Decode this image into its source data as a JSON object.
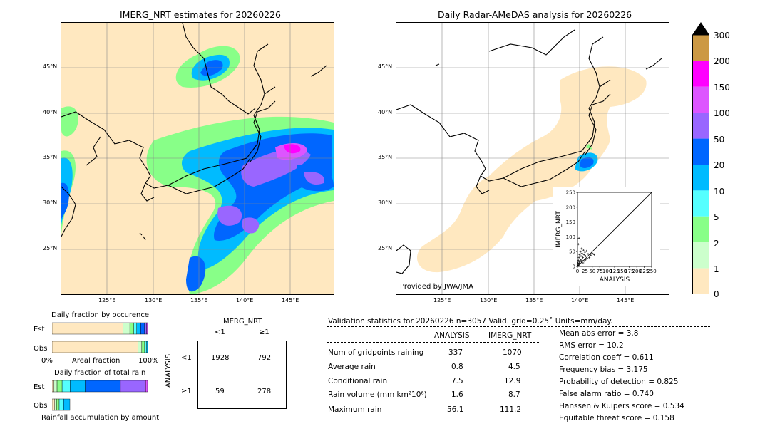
{
  "left_panel": {
    "title": "IMERG_NRT estimates for 20260226",
    "lat_ticks": [
      "45°N",
      "40°N",
      "35°N",
      "30°N",
      "25°N"
    ],
    "lon_ticks": [
      "125°E",
      "130°E",
      "135°E",
      "140°E",
      "145°E"
    ]
  },
  "right_panel": {
    "title": "Daily Radar-AMeDAS analysis for 20260226",
    "credit": "Provided by JWA/JMA",
    "lat_ticks": [
      "45°N",
      "40°N",
      "35°N",
      "30°N",
      "25°N"
    ],
    "lon_ticks": [
      "125°E",
      "130°E",
      "135°E",
      "140°E",
      "145°E"
    ]
  },
  "colorbar": {
    "labels": [
      "300",
      "200",
      "150",
      "100",
      "50",
      "20",
      "10",
      "5",
      "2",
      "1",
      "0"
    ],
    "colors": [
      "#cc9944",
      "#ff00ff",
      "#dd55ff",
      "#9966ff",
      "#0066ff",
      "#00bbff",
      "#55ffff",
      "#88ff88",
      "#ccffcc",
      "#ffe8c0"
    ],
    "top_color": "#000000"
  },
  "occurrence": {
    "title": "Daily fraction by occurence",
    "est_label": "Est",
    "obs_label": "Obs",
    "xaxis_left": "0%",
    "xaxis_mid": "Areal fraction",
    "xaxis_right": "100%",
    "est_segments": [
      0.72,
      0.07,
      0.04,
      0.03,
      0.04,
      0.04,
      0.02,
      0.01
    ],
    "obs_segments": [
      0.89,
      0.04,
      0.03,
      0.02,
      0.01
    ]
  },
  "total_rain": {
    "title": "Daily fraction of total rain",
    "est_label": "Est",
    "obs_label": "Obs",
    "footer": "Rainfall accumulation by amount",
    "est_segments": [
      0.02,
      0.03,
      0.05,
      0.08,
      0.15,
      0.35,
      0.25,
      0.02
    ],
    "obs_segments": [
      0.03,
      0.02,
      0.03,
      0.05,
      0.07
    ]
  },
  "contingency": {
    "title": "IMERG_NRT",
    "col_lt1": "<1",
    "col_ge1": "≥1",
    "row_axis": "ANALYSIS",
    "row_lt1": "<1",
    "row_ge1": "≥1",
    "a": "1928",
    "b": "792",
    "c": "59",
    "d": "278"
  },
  "validation": {
    "header": "Validation statistics for 20260226  n=3057 Valid. grid=0.25˚ Units=mm/day.",
    "col_analysis": "ANALYSIS",
    "col_imerg": "IMERG_NRT",
    "rows": [
      {
        "label": "Num of gridpoints raining",
        "analysis": "337",
        "imerg": "1070"
      },
      {
        "label": "Average rain",
        "analysis": "0.8",
        "imerg": "4.5"
      },
      {
        "label": "Conditional rain",
        "analysis": "7.5",
        "imerg": "12.9"
      },
      {
        "label": "Rain volume (mm km²10⁶)",
        "analysis": "1.6",
        "imerg": "8.7"
      },
      {
        "label": "Maximum rain",
        "analysis": "56.1",
        "imerg": "111.2"
      }
    ],
    "scores": [
      "Mean abs error =    3.8",
      "RMS error =   10.2",
      "Correlation coeff =  0.611",
      "Frequency bias =  3.175",
      "Probability of detection =  0.825",
      "False alarm ratio =  0.740",
      "Hanssen & Kuipers score =  0.534",
      "Equitable threat score =  0.158"
    ]
  },
  "chart_data": {
    "type": "scatter",
    "xlabel": "ANALYSIS",
    "ylabel": "IMERG_NRT",
    "xlim": [
      0,
      250
    ],
    "ylim": [
      0,
      250
    ],
    "xticks": [
      "0",
      "25",
      "50",
      "75",
      "100",
      "125",
      "150",
      "175",
      "200",
      "225",
      "250"
    ],
    "yticks": [
      "0",
      "50",
      "100",
      "150",
      "200",
      "250"
    ],
    "points": [
      [
        1,
        5
      ],
      [
        2,
        12
      ],
      [
        3,
        20
      ],
      [
        4,
        8
      ],
      [
        5,
        30
      ],
      [
        6,
        15
      ],
      [
        7,
        40
      ],
      [
        8,
        25
      ],
      [
        10,
        50
      ],
      [
        12,
        35
      ],
      [
        14,
        60
      ],
      [
        15,
        45
      ],
      [
        18,
        30
      ],
      [
        20,
        55
      ],
      [
        22,
        40
      ],
      [
        25,
        48
      ],
      [
        28,
        35
      ],
      [
        30,
        52
      ],
      [
        33,
        28
      ],
      [
        36,
        42
      ],
      [
        40,
        30
      ],
      [
        45,
        38
      ],
      [
        50,
        45
      ],
      [
        56,
        40
      ],
      [
        3,
        75
      ],
      [
        5,
        95
      ],
      [
        8,
        110
      ],
      [
        2,
        2
      ],
      [
        4,
        3
      ],
      [
        6,
        10
      ],
      [
        9,
        18
      ],
      [
        11,
        22
      ],
      [
        13,
        15
      ],
      [
        16,
        20
      ],
      [
        19,
        12
      ],
      [
        24,
        18
      ],
      [
        27,
        22
      ]
    ]
  }
}
